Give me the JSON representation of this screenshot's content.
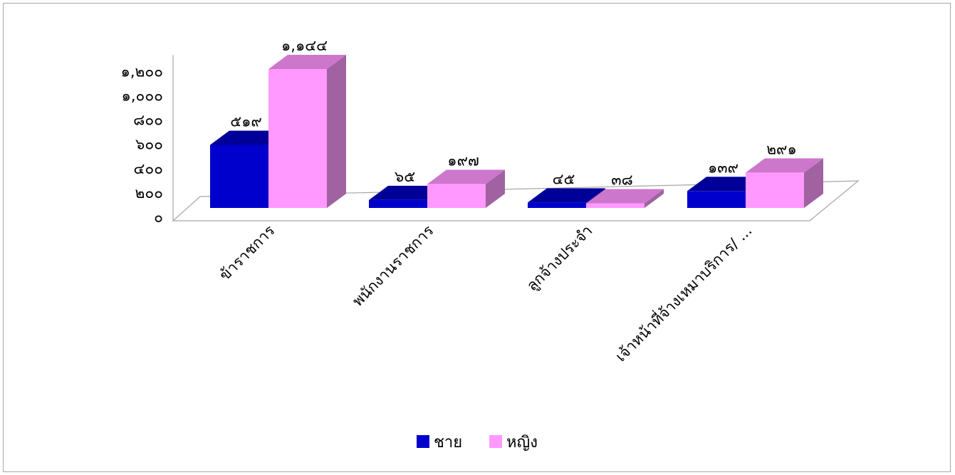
{
  "chart_data": {
    "type": "bar",
    "categories": [
      "ข้าราชการ",
      "พนักงานราชการ",
      "ลูกจ้างประจำ",
      "เจ้าหน้าที่จ้างเหมาบริการ/ ..."
    ],
    "series": [
      {
        "name": "ชาย",
        "values": [
          519,
          65,
          45,
          139
        ],
        "labels": [
          "๕๑๙",
          "๖๕",
          "๔๕",
          "๑๓๙"
        ]
      },
      {
        "name": "หญิง",
        "values": [
          1144,
          197,
          38,
          291
        ],
        "labels": [
          "๑,๑๔๔",
          "๑๙๗",
          "๓๘",
          "๒๙๑"
        ]
      }
    ],
    "yaxis": {
      "ylim": [
        0,
        1200
      ],
      "ticks": [
        0,
        200,
        400,
        600,
        800,
        1000,
        1200
      ],
      "tick_labels": [
        "๐",
        "๒๐๐",
        "๔๐๐",
        "๖๐๐",
        "๘๐๐",
        "๑,๐๐๐",
        "๑,๒๐๐"
      ]
    },
    "legend": {
      "position": "bottom",
      "entries": [
        "ชาย",
        "หญิง"
      ]
    },
    "grid": false,
    "three_d": true,
    "colors": {
      "ชาย": {
        "front": "#0000cc",
        "top": "#000099",
        "side": "#00008a"
      },
      "หญิง": {
        "front": "#ff99ff",
        "top": "#cc77cc",
        "side": "#a062a0"
      }
    },
    "floor_color": "#ffffff",
    "axis_color": "#a6a6a6"
  }
}
